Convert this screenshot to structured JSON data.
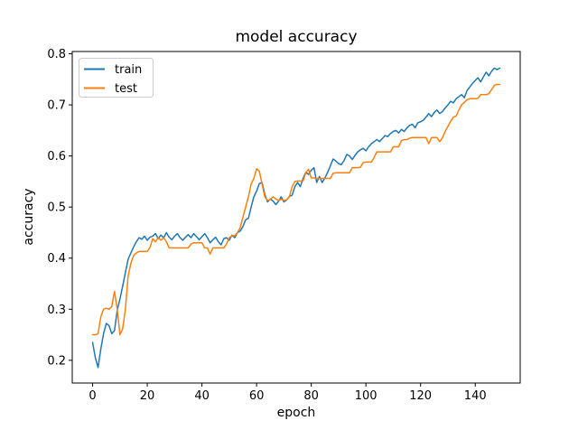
{
  "chart_data": {
    "type": "line",
    "title": "model accuracy",
    "xlabel": "epoch",
    "ylabel": "accuracy",
    "xlim": [
      -7.45,
      156.45
    ],
    "ylim": [
      0.1555,
      0.8045
    ],
    "grid": false,
    "x_ticks": [
      0,
      20,
      40,
      60,
      80,
      100,
      120,
      140
    ],
    "x_tick_labels": [
      "0",
      "20",
      "40",
      "60",
      "80",
      "100",
      "120",
      "140"
    ],
    "y_ticks": [
      0.2,
      0.3,
      0.4,
      0.5,
      0.6,
      0.7,
      0.8
    ],
    "y_tick_labels": [
      "0.2",
      "0.3",
      "0.4",
      "0.5",
      "0.6",
      "0.7",
      "0.8"
    ],
    "legend": {
      "position": "upper left",
      "entries": [
        "train",
        "test"
      ]
    },
    "series": [
      {
        "name": "train",
        "color": "#1f77b4",
        "x_start": 0,
        "values": [
          0.235,
          0.205,
          0.186,
          0.222,
          0.252,
          0.272,
          0.268,
          0.252,
          0.258,
          0.298,
          0.32,
          0.345,
          0.372,
          0.398,
          0.41,
          0.422,
          0.432,
          0.44,
          0.437,
          0.443,
          0.435,
          0.441,
          0.443,
          0.448,
          0.438,
          0.445,
          0.44,
          0.45,
          0.441,
          0.436,
          0.443,
          0.448,
          0.44,
          0.435,
          0.441,
          0.446,
          0.44,
          0.448,
          0.442,
          0.436,
          0.442,
          0.448,
          0.44,
          0.43,
          0.436,
          0.441,
          0.432,
          0.426,
          0.438,
          0.44,
          0.435,
          0.445,
          0.44,
          0.45,
          0.453,
          0.462,
          0.475,
          0.478,
          0.5,
          0.52,
          0.531,
          0.546,
          0.548,
          0.525,
          0.51,
          0.516,
          0.512,
          0.505,
          0.511,
          0.52,
          0.51,
          0.514,
          0.521,
          0.523,
          0.54,
          0.548,
          0.54,
          0.556,
          0.568,
          0.564,
          0.572,
          0.577,
          0.548,
          0.56,
          0.548,
          0.557,
          0.568,
          0.581,
          0.594,
          0.59,
          0.585,
          0.583,
          0.591,
          0.603,
          0.6,
          0.593,
          0.601,
          0.608,
          0.612,
          0.615,
          0.61,
          0.618,
          0.624,
          0.628,
          0.632,
          0.628,
          0.634,
          0.64,
          0.638,
          0.644,
          0.648,
          0.65,
          0.645,
          0.652,
          0.648,
          0.655,
          0.66,
          0.662,
          0.655,
          0.665,
          0.667,
          0.67,
          0.676,
          0.683,
          0.677,
          0.685,
          0.69,
          0.683,
          0.687,
          0.694,
          0.7,
          0.707,
          0.704,
          0.712,
          0.716,
          0.72,
          0.714,
          0.728,
          0.735,
          0.742,
          0.748,
          0.753,
          0.745,
          0.755,
          0.764,
          0.757,
          0.766,
          0.772,
          0.769,
          0.772
        ]
      },
      {
        "name": "test",
        "color": "#ff7f0e",
        "x_start": 0,
        "values": [
          0.25,
          0.25,
          0.252,
          0.285,
          0.3,
          0.302,
          0.3,
          0.305,
          0.335,
          0.3,
          0.25,
          0.262,
          0.3,
          0.365,
          0.39,
          0.405,
          0.41,
          0.413,
          0.413,
          0.413,
          0.413,
          0.421,
          0.438,
          0.432,
          0.44,
          0.435,
          0.44,
          0.432,
          0.42,
          0.42,
          0.42,
          0.42,
          0.42,
          0.42,
          0.42,
          0.42,
          0.428,
          0.43,
          0.43,
          0.43,
          0.43,
          0.42,
          0.42,
          0.408,
          0.42,
          0.42,
          0.42,
          0.42,
          0.42,
          0.428,
          0.44,
          0.444,
          0.444,
          0.45,
          0.46,
          0.48,
          0.5,
          0.52,
          0.545,
          0.556,
          0.575,
          0.57,
          0.545,
          0.52,
          0.513,
          0.515,
          0.52,
          0.516,
          0.513,
          0.515,
          0.513,
          0.514,
          0.52,
          0.54,
          0.55,
          0.551,
          0.551,
          0.551,
          0.567,
          0.574,
          0.557,
          0.557,
          0.556,
          0.556,
          0.556,
          0.556,
          0.556,
          0.556,
          0.566,
          0.567,
          0.567,
          0.567,
          0.567,
          0.567,
          0.567,
          0.577,
          0.577,
          0.577,
          0.578,
          0.587,
          0.588,
          0.588,
          0.588,
          0.597,
          0.608,
          0.608,
          0.608,
          0.608,
          0.608,
          0.608,
          0.618,
          0.618,
          0.618,
          0.63,
          0.632,
          0.632,
          0.635,
          0.636,
          0.636,
          0.636,
          0.636,
          0.636,
          0.636,
          0.624,
          0.636,
          0.636,
          0.636,
          0.628,
          0.636,
          0.648,
          0.658,
          0.668,
          0.676,
          0.678,
          0.69,
          0.7,
          0.705,
          0.71,
          0.712,
          0.712,
          0.712,
          0.713,
          0.72,
          0.72,
          0.72,
          0.722,
          0.73,
          0.738,
          0.74,
          0.74
        ]
      }
    ],
    "colors": {
      "train": "#1f77b4",
      "test": "#ff7f0e",
      "spine": "#000000",
      "background": "#ffffff",
      "legend_border": "#cccccc"
    }
  }
}
